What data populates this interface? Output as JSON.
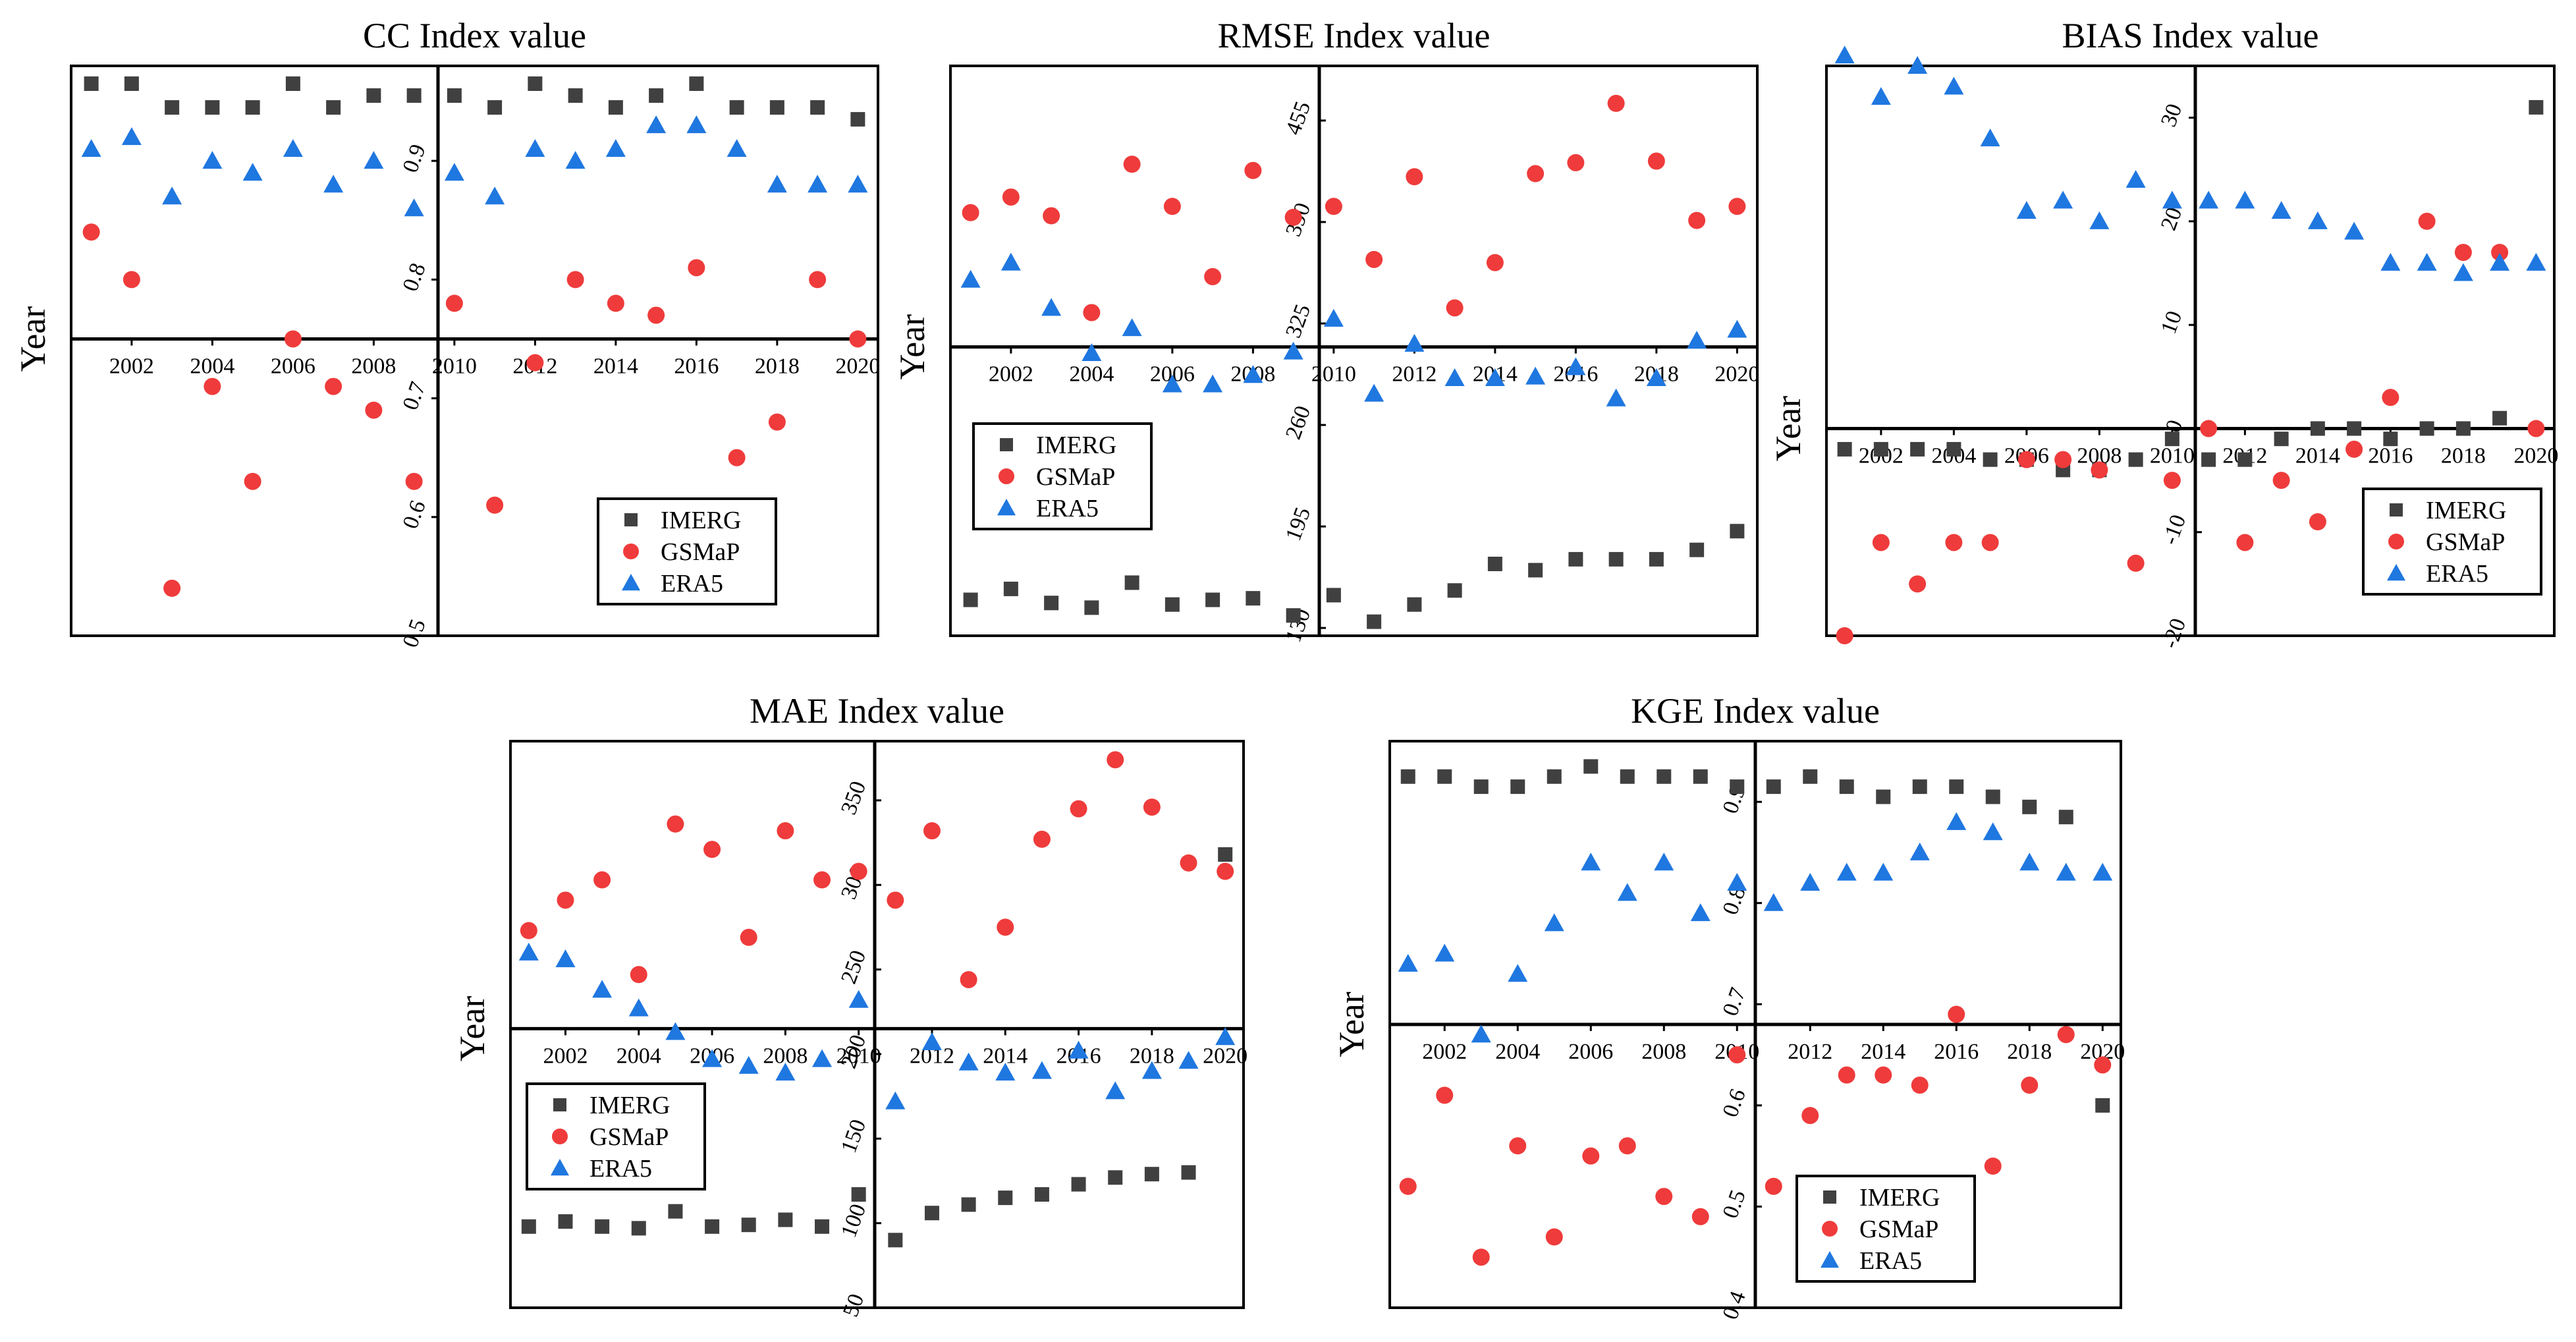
{
  "figure": {
    "year_label": "Year",
    "legend_labels": [
      "IMERG",
      "GSMaP",
      "ERA5"
    ]
  },
  "colors": {
    "IMERG": "#404040",
    "GSMaP": "#ef3b3b",
    "ERA5": "#1f77e0"
  },
  "chart_data": [
    {
      "id": "cc",
      "type": "scatter",
      "title": "CC Index value",
      "xlabel": "Year",
      "legend_position": "bottom-right",
      "years": [
        2001,
        2002,
        2003,
        2004,
        2005,
        2006,
        2007,
        2008,
        2009,
        2010,
        2011,
        2012,
        2013,
        2014,
        2015,
        2016,
        2017,
        2018,
        2019,
        2020
      ],
      "ylim": [
        0.5,
        0.98
      ],
      "xaxis_y": 0.75,
      "left_ticks": [
        0.5,
        0.6,
        0.7,
        0.8,
        0.9
      ],
      "right_ticks": [],
      "bottom_ticks": [
        2002,
        2004,
        2006,
        2008,
        2010,
        2012,
        2014,
        2016,
        2018,
        2020
      ],
      "series": [
        {
          "name": "IMERG",
          "values": [
            0.965,
            0.965,
            0.945,
            0.945,
            0.945,
            0.965,
            0.945,
            0.955,
            0.955,
            0.955,
            0.945,
            0.965,
            0.955,
            0.945,
            0.955,
            0.965,
            0.945,
            0.945,
            0.945,
            0.935
          ]
        },
        {
          "name": "GSMaP",
          "values": [
            0.84,
            0.8,
            0.54,
            0.71,
            0.63,
            0.75,
            0.71,
            0.69,
            0.63,
            0.78,
            0.61,
            0.73,
            0.8,
            0.78,
            0.77,
            0.81,
            0.65,
            0.68,
            0.8,
            0.75
          ]
        },
        {
          "name": "ERA5",
          "values": [
            0.91,
            0.92,
            0.87,
            0.9,
            0.89,
            0.91,
            0.88,
            0.9,
            0.86,
            0.89,
            0.87,
            0.91,
            0.9,
            0.91,
            0.93,
            0.93,
            0.91,
            0.88,
            0.88,
            0.88
          ]
        }
      ]
    },
    {
      "id": "rmse",
      "type": "scatter",
      "title": "RMSE Index value",
      "xlabel": "Year",
      "legend_position": "bottom-left",
      "years": [
        2001,
        2002,
        2003,
        2004,
        2005,
        2006,
        2007,
        2008,
        2009,
        2010,
        2011,
        2012,
        2013,
        2014,
        2015,
        2016,
        2017,
        2018,
        2019,
        2020
      ],
      "ylim": [
        125,
        490
      ],
      "xaxis_y": 310,
      "left_ticks": [],
      "right_ticks": [
        130,
        195,
        260,
        325,
        390,
        455
      ],
      "bottom_ticks": [
        2002,
        2004,
        2006,
        2008,
        2010,
        2012,
        2014,
        2016,
        2018,
        2020
      ],
      "series": [
        {
          "name": "IMERG",
          "values": [
            148,
            155,
            146,
            143,
            159,
            145,
            148,
            149,
            138,
            151,
            134,
            145,
            154,
            171,
            167,
            174,
            174,
            174,
            180,
            192
          ]
        },
        {
          "name": "GSMaP",
          "values": [
            396,
            406,
            394,
            332,
            427,
            400,
            355,
            423,
            393,
            400,
            366,
            419,
            335,
            364,
            421,
            428,
            466,
            429,
            391,
            400
          ]
        },
        {
          "name": "ERA5",
          "values": [
            353,
            364,
            335,
            306,
            322,
            286,
            286,
            292,
            307,
            328,
            280,
            312,
            290,
            290,
            291,
            297,
            277,
            290,
            314,
            321
          ]
        }
      ]
    },
    {
      "id": "bias",
      "type": "scatter",
      "title": "BIAS Index value",
      "xlabel": "Year",
      "legend_position": "bottom-right",
      "years": [
        2001,
        2002,
        2003,
        2004,
        2005,
        2006,
        2007,
        2008,
        2009,
        2010,
        2011,
        2012,
        2013,
        2014,
        2015,
        2016,
        2017,
        2018,
        2019,
        2020
      ],
      "ylim": [
        -20,
        35
      ],
      "xaxis_y": 0,
      "left_ticks": [
        10,
        20,
        30
      ],
      "right_ticks": [
        -20,
        -10,
        0
      ],
      "bottom_ticks": [
        2002,
        2004,
        2006,
        2008,
        2010,
        2012,
        2014,
        2016,
        2018,
        2020
      ],
      "series": [
        {
          "name": "IMERG",
          "values": [
            -2,
            -2,
            -2,
            -2,
            -3,
            -3,
            -4,
            -4,
            -3,
            -1,
            -3,
            -3,
            -1,
            0,
            0,
            -1,
            0,
            0,
            1,
            31
          ]
        },
        {
          "name": "GSMaP",
          "values": [
            -20,
            -11,
            -15,
            -11,
            -11,
            -3,
            -3,
            -4,
            -13,
            -5,
            0,
            -11,
            -5,
            -9,
            -2,
            3,
            20,
            17,
            17,
            0
          ]
        },
        {
          "name": "ERA5",
          "values": [
            36,
            32,
            35,
            33,
            28,
            21,
            22,
            20,
            24,
            22,
            22,
            22,
            21,
            20,
            19,
            16,
            16,
            15,
            16,
            16
          ]
        }
      ]
    },
    {
      "id": "mae",
      "type": "scatter",
      "title": "MAE Index value",
      "xlabel": "Year",
      "legend_position": "bottom-left",
      "years": [
        2001,
        2002,
        2003,
        2004,
        2005,
        2006,
        2007,
        2008,
        2009,
        2010,
        2011,
        2012,
        2013,
        2014,
        2015,
        2016,
        2017,
        2018,
        2019,
        2020
      ],
      "ylim": [
        50,
        385
      ],
      "xaxis_y": 215,
      "left_ticks": [],
      "right_ticks": [
        50,
        100,
        150,
        200,
        250,
        300,
        350
      ],
      "bottom_ticks": [
        2002,
        2004,
        2006,
        2008,
        2010,
        2012,
        2014,
        2016,
        2018,
        2020
      ],
      "series": [
        {
          "name": "IMERG",
          "values": [
            98,
            101,
            98,
            97,
            107,
            98,
            99,
            102,
            98,
            117,
            90,
            106,
            111,
            115,
            117,
            123,
            127,
            129,
            130,
            318
          ]
        },
        {
          "name": "GSMaP",
          "values": [
            273,
            291,
            303,
            247,
            336,
            321,
            269,
            332,
            303,
            308,
            291,
            332,
            244,
            275,
            327,
            345,
            374,
            346,
            313,
            308
          ]
        },
        {
          "name": "ERA5",
          "values": [
            260,
            256,
            238,
            227,
            213,
            197,
            193,
            189,
            197,
            232,
            172,
            207,
            195,
            189,
            190,
            202,
            178,
            190,
            196,
            210
          ]
        }
      ]
    },
    {
      "id": "kge",
      "type": "scatter",
      "title": "KGE Index value",
      "xlabel": "Year",
      "legend_position": "bottom-center",
      "years": [
        2001,
        2002,
        2003,
        2004,
        2005,
        2006,
        2007,
        2008,
        2009,
        2010,
        2011,
        2012,
        2013,
        2014,
        2015,
        2016,
        2017,
        2018,
        2019,
        2020
      ],
      "ylim": [
        0.4,
        0.96
      ],
      "xaxis_y": 0.68,
      "left_ticks": [],
      "right_ticks": [
        0.4,
        0.5,
        0.6,
        0.7,
        0.8,
        0.9
      ],
      "bottom_ticks": [
        2002,
        2004,
        2006,
        2008,
        2010,
        2012,
        2014,
        2016,
        2018,
        2020
      ],
      "series": [
        {
          "name": "IMERG",
          "values": [
            0.925,
            0.925,
            0.915,
            0.915,
            0.925,
            0.935,
            0.925,
            0.925,
            0.925,
            0.915,
            0.915,
            0.925,
            0.915,
            0.905,
            0.915,
            0.915,
            0.905,
            0.895,
            0.885,
            0.6
          ]
        },
        {
          "name": "GSMaP",
          "values": [
            0.52,
            0.61,
            0.45,
            0.56,
            0.47,
            0.55,
            0.56,
            0.51,
            0.49,
            0.65,
            0.52,
            0.59,
            0.63,
            0.63,
            0.62,
            0.69,
            0.54,
            0.62,
            0.67,
            0.64
          ]
        },
        {
          "name": "ERA5",
          "values": [
            0.74,
            0.75,
            0.67,
            0.73,
            0.78,
            0.84,
            0.81,
            0.84,
            0.79,
            0.82,
            0.8,
            0.82,
            0.83,
            0.83,
            0.85,
            0.88,
            0.87,
            0.84,
            0.83,
            0.83
          ]
        }
      ]
    }
  ]
}
